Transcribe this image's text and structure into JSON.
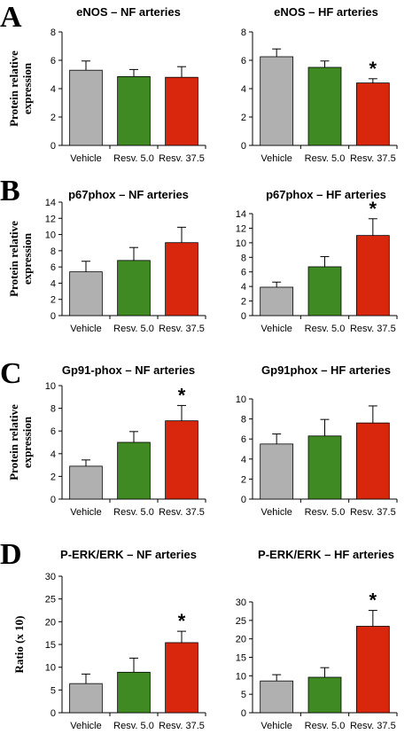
{
  "panel_letters": [
    "A",
    "B",
    "C",
    "D"
  ],
  "row_ylabels": [
    [
      "Protein relative",
      "expression"
    ],
    [
      "Protein relative",
      "expression"
    ],
    [
      "Protein relative",
      "expression"
    ],
    [
      "Ratio (x 10)"
    ]
  ],
  "colors": {
    "Vehicle": "#b0b0b0",
    "Resv. 5.0": "#3f8a22",
    "Resv. 37.5": "#d9270d"
  },
  "chart_data": [
    {
      "type": "bar",
      "title": "eNOS – NF arteries",
      "categories": [
        "Vehicle",
        "Resv. 5.0",
        "Resv. 37.5"
      ],
      "values": [
        5.3,
        4.85,
        4.8
      ],
      "errors": [
        0.65,
        0.5,
        0.75
      ],
      "significant": [
        "",
        "",
        ""
      ],
      "ylim": [
        0,
        8
      ],
      "yticks": [
        0,
        2,
        4,
        6,
        8
      ]
    },
    {
      "type": "bar",
      "title": "eNOS – HF arteries",
      "categories": [
        "Vehicle",
        "Resv. 5.0",
        "Resv. 37.5"
      ],
      "values": [
        6.25,
        5.5,
        4.4
      ],
      "errors": [
        0.55,
        0.45,
        0.3
      ],
      "significant": [
        "",
        "",
        "*"
      ],
      "ylim": [
        0,
        8
      ],
      "yticks": [
        0,
        2,
        4,
        6,
        8
      ]
    },
    {
      "type": "bar",
      "title": "p67phox – NF arteries",
      "categories": [
        "Vehicle",
        "Resv. 5.0",
        "Resv. 37.5"
      ],
      "values": [
        5.4,
        6.8,
        9.0
      ],
      "errors": [
        1.3,
        1.6,
        1.9
      ],
      "significant": [
        "",
        "",
        ""
      ],
      "ylim": [
        0,
        14
      ],
      "yticks": [
        0,
        2,
        4,
        6,
        8,
        10,
        12,
        14
      ]
    },
    {
      "type": "bar",
      "title": "p67phox – HF arteries",
      "categories": [
        "Vehicle",
        "Resv. 5.0",
        "Resv. 37.5"
      ],
      "values": [
        3.9,
        6.7,
        11.0
      ],
      "errors": [
        0.7,
        1.4,
        2.3
      ],
      "significant": [
        "",
        "",
        "*"
      ],
      "ylim": [
        0,
        14
      ],
      "yticks": [
        0,
        2,
        4,
        6,
        8,
        10,
        12,
        14
      ]
    },
    {
      "type": "bar",
      "title": "Gp91-phox – NF arteries",
      "categories": [
        "Vehicle",
        "Resv. 5.0",
        "Resv. 37.5"
      ],
      "values": [
        2.9,
        5.0,
        6.9
      ],
      "errors": [
        0.55,
        0.95,
        1.35
      ],
      "significant": [
        "",
        "",
        "*"
      ],
      "ylim": [
        0,
        10
      ],
      "yticks": [
        0,
        2,
        4,
        6,
        8,
        10
      ]
    },
    {
      "type": "bar",
      "title": "Gp91phox – HF arteries",
      "categories": [
        "Vehicle",
        "Resv. 5.0",
        "Resv. 37.5"
      ],
      "values": [
        5.5,
        6.3,
        7.6
      ],
      "errors": [
        1.0,
        1.65,
        1.7
      ],
      "significant": [
        "",
        "",
        ""
      ],
      "ylim": [
        0,
        10
      ],
      "yticks": [
        0,
        2,
        4,
        6,
        8,
        10
      ]
    },
    {
      "type": "bar",
      "title": "P-ERK/ERK – NF arteries",
      "categories": [
        "Vehicle",
        "Resv. 5.0",
        "Resv. 37.5"
      ],
      "values": [
        6.4,
        8.9,
        15.4
      ],
      "errors": [
        2.1,
        3.1,
        2.5
      ],
      "significant": [
        "",
        "",
        "*"
      ],
      "ylim": [
        0,
        30
      ],
      "yticks": [
        0,
        5,
        10,
        15,
        20,
        25,
        30
      ]
    },
    {
      "type": "bar",
      "title": "P-ERK/ERK – HF arteries",
      "categories": [
        "Vehicle",
        "Resv. 5.0",
        "Resv. 37.5"
      ],
      "values": [
        8.6,
        9.6,
        23.4
      ],
      "errors": [
        1.7,
        2.6,
        4.3
      ],
      "significant": [
        "",
        "",
        "*"
      ],
      "ylim": [
        0,
        30
      ],
      "yticks": [
        0,
        5,
        10,
        15,
        20,
        25,
        30
      ]
    }
  ]
}
